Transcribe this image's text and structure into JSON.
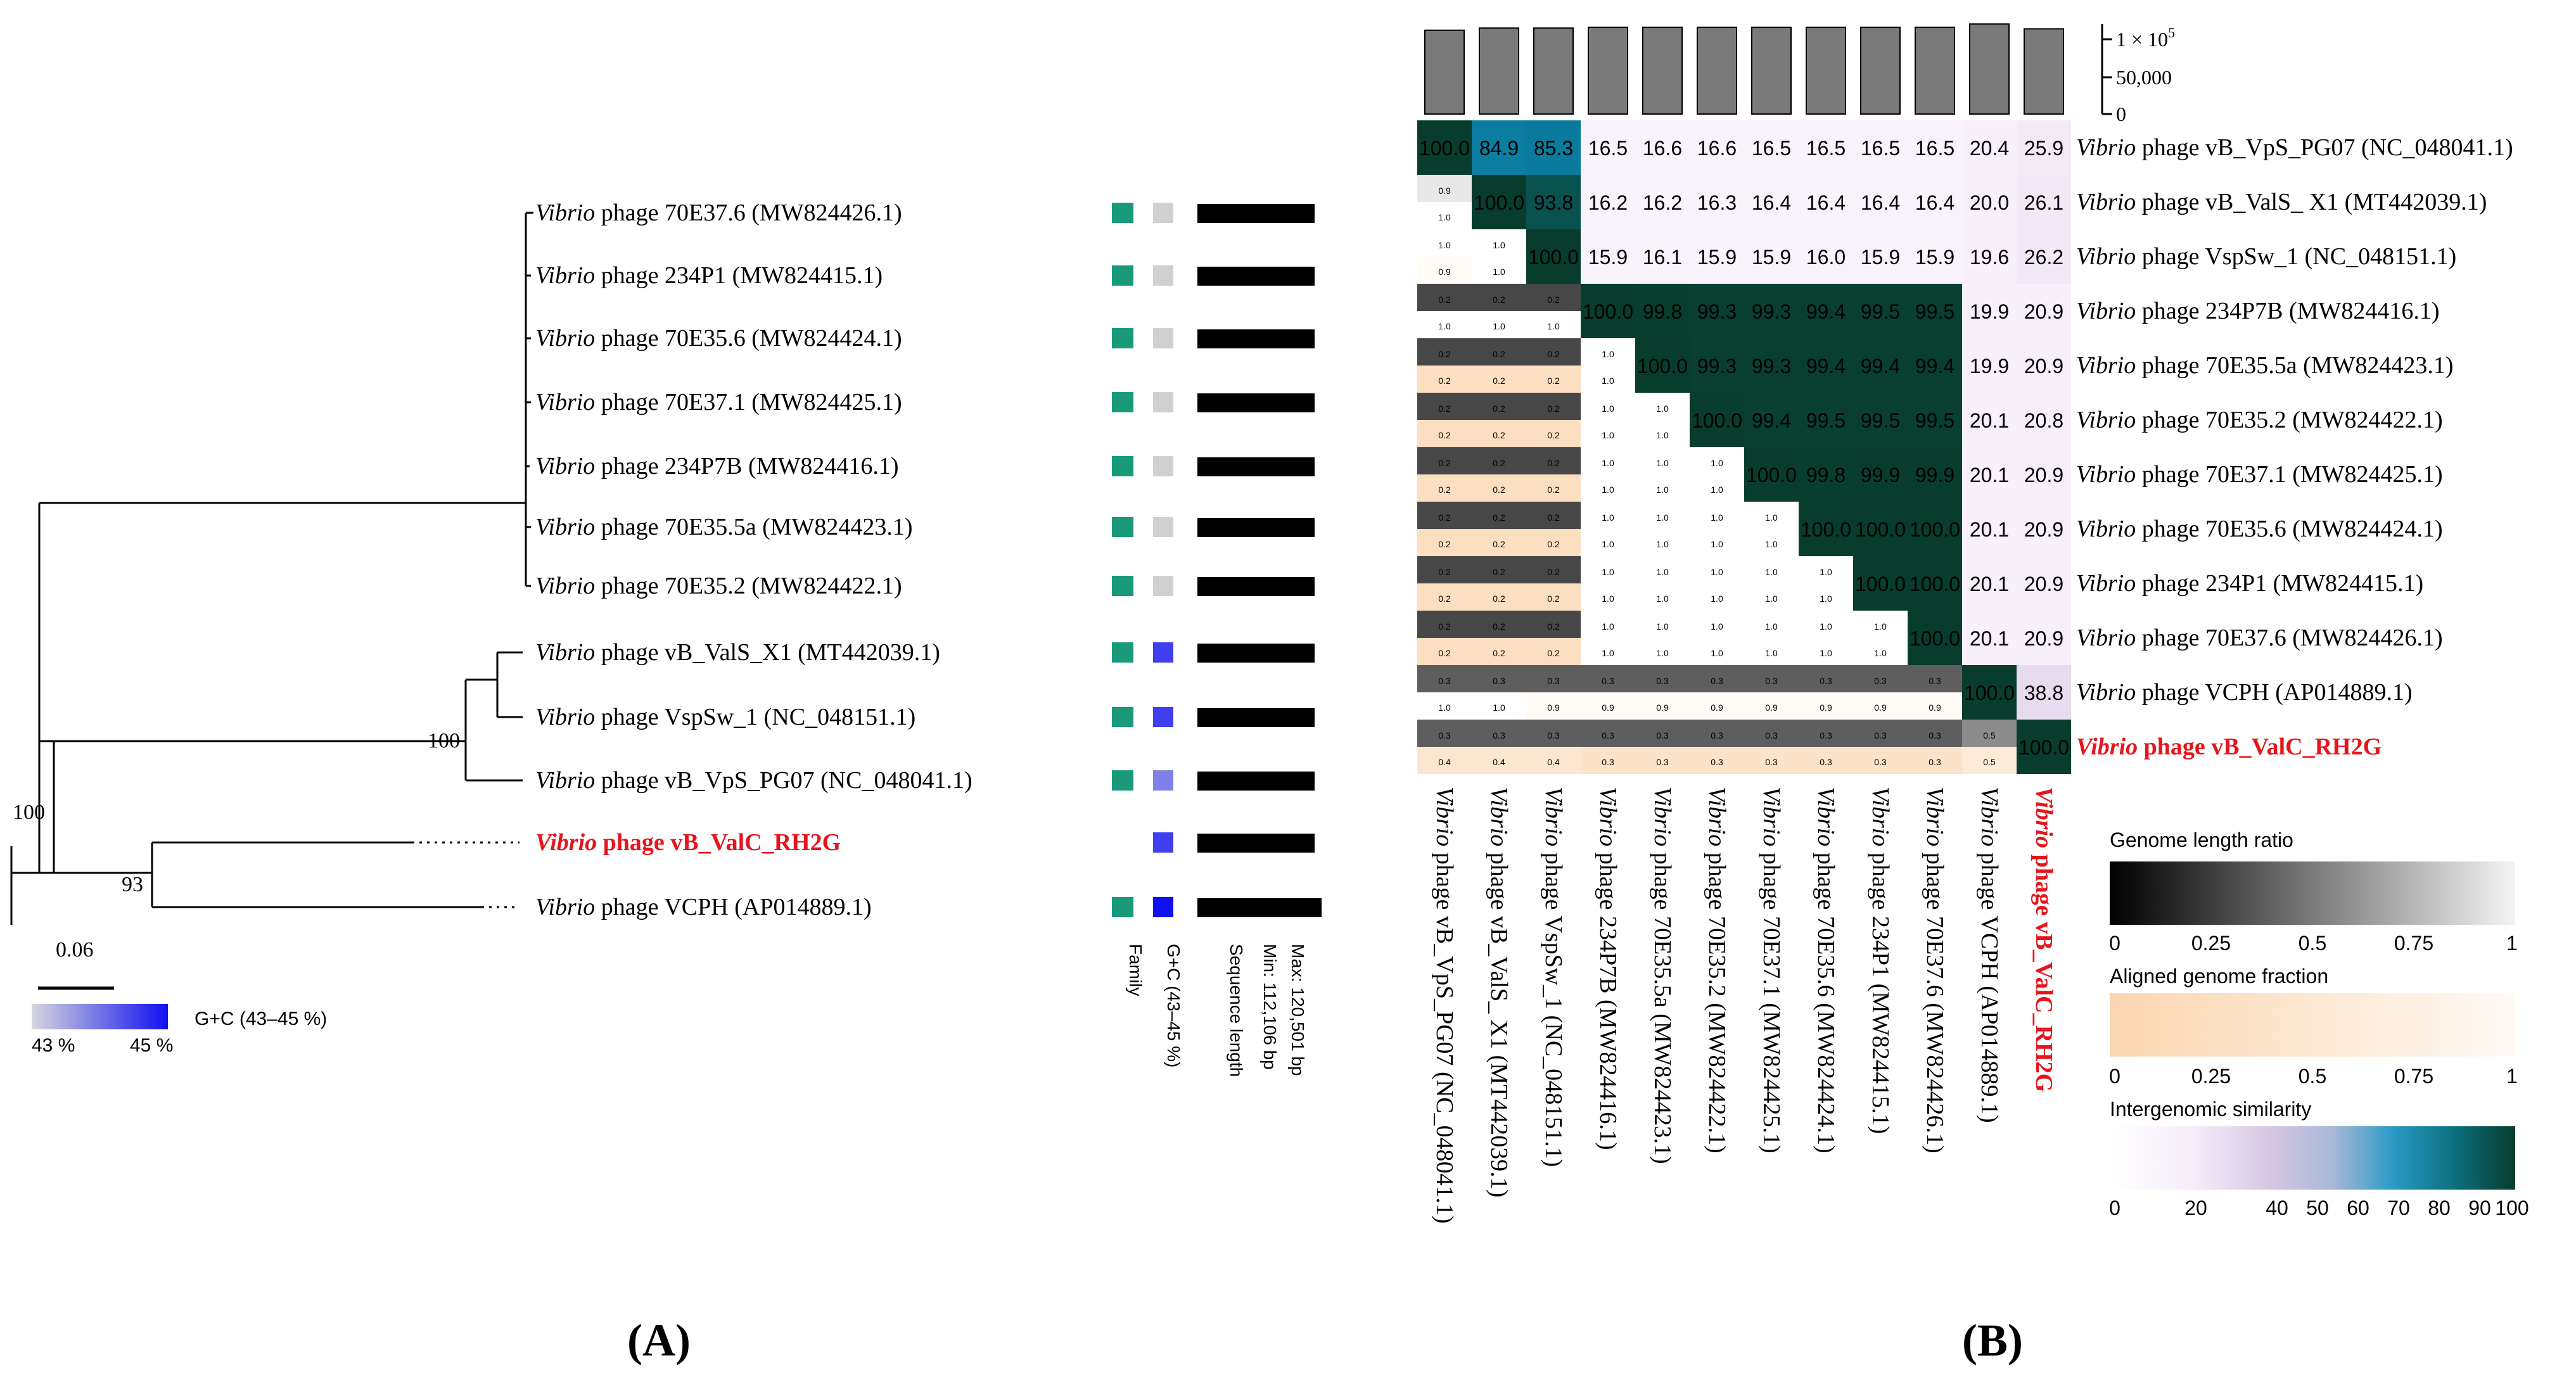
{
  "panel_a": {
    "label": "A",
    "tips": [
      {
        "genus": "Vibrio",
        "rest": " phage 70E37.6  (MW824426.1)",
        "highlight": false,
        "family": true,
        "gc": "#d0d0d0"
      },
      {
        "genus": "Vibrio",
        "rest": " phage 234P1  (MW824415.1)",
        "highlight": false,
        "family": true,
        "gc": "#d0d0d0"
      },
      {
        "genus": "Vibrio",
        "rest": " phage 70E35.6 (MW824424.1)",
        "highlight": false,
        "family": true,
        "gc": "#d0d0d0"
      },
      {
        "genus": "Vibrio",
        "rest": " phage 70E37.1 (MW824425.1)",
        "highlight": false,
        "family": true,
        "gc": "#d0d0d0"
      },
      {
        "genus": "Vibrio",
        "rest": " phage 234P7B  (MW824416.1)",
        "highlight": false,
        "family": true,
        "gc": "#d0d0d0"
      },
      {
        "genus": "Vibrio",
        "rest": " phage 70E35.5a (MW824423.1)",
        "highlight": false,
        "family": true,
        "gc": "#d0d0d0"
      },
      {
        "genus": "Vibrio",
        "rest": " phage 70E35.2 (MW824422.1)",
        "highlight": false,
        "family": true,
        "gc": "#d0d0d0"
      },
      {
        "genus": "Vibrio",
        "rest": " phage vB_ValS_X1 (MT442039.1)",
        "highlight": false,
        "family": true,
        "gc": "#3f3ff0"
      },
      {
        "genus": "Vibrio",
        "rest": " phage VspSw_1 (NC_048151.1)",
        "highlight": false,
        "family": true,
        "gc": "#3f3ff0"
      },
      {
        "genus": "Vibrio",
        "rest": " phage vB_VpS_PG07 (NC_048041.1)",
        "highlight": false,
        "family": true,
        "gc": "#8080e8"
      },
      {
        "genus": "Vibrio",
        "rest": " phage vB_ValC_RH2G",
        "highlight": true,
        "family": false,
        "gc": "#3f3ff0"
      },
      {
        "genus": "Vibrio",
        "rest": " phage VCPH (AP014889.1)",
        "highlight": false,
        "family": true,
        "gc": "#1010f0"
      }
    ],
    "bootstrap": [
      "100",
      "100",
      "93"
    ],
    "scale_label": "0.06",
    "gc_legend": {
      "title": "G+C (43–45 %)",
      "min": "43 %",
      "max": "45 %"
    },
    "column_labels": {
      "family": "Family",
      "gc": "G+C (43–45 %)",
      "length_title": "Sequence length",
      "length_min": "Min: 112,106 bp",
      "length_max": "Max: 120,501 bp"
    },
    "colors": {
      "family": "#1a9a7a",
      "highlight": "#e8141c"
    }
  },
  "panel_b": {
    "label": "B",
    "rows": [
      {
        "genus": "Vibrio",
        "rest": " phage vB_VpS_PG07 (NC_048041.1)",
        "hl": false
      },
      {
        "genus": "Vibrio",
        "rest": " phage vB_ValS_ X1 (MT442039.1)",
        "hl": false
      },
      {
        "genus": "Vibrio",
        "rest": " phage VspSw_1 (NC_048151.1)",
        "hl": false
      },
      {
        "genus": "Vibrio",
        "rest": " phage 234P7B (MW824416.1)",
        "hl": false
      },
      {
        "genus": "Vibrio",
        "rest": " phage 70E35.5a (MW824423.1)",
        "hl": false
      },
      {
        "genus": "Vibrio",
        "rest": " phage 70E35.2 (MW824422.1)",
        "hl": false
      },
      {
        "genus": "Vibrio",
        "rest": " phage 70E37.1 (MW824425.1)",
        "hl": false
      },
      {
        "genus": "Vibrio",
        "rest": " phage 70E35.6 (MW824424.1)",
        "hl": false
      },
      {
        "genus": "Vibrio",
        "rest": " phage 234P1 (MW824415.1)",
        "hl": false
      },
      {
        "genus": "Vibrio",
        "rest": " phage 70E37.6 (MW824426.1)",
        "hl": false
      },
      {
        "genus": "Vibrio",
        "rest": " phage VCPH (AP014889.1)",
        "hl": false
      },
      {
        "genus": "Vibrio",
        "rest": " phage vB_ValC_RH2G",
        "hl": true
      }
    ],
    "cols": [
      {
        "genus": "Vibrio",
        "rest": " phage vB_VpS_PG07 (NC_048041.1)",
        "hl": false
      },
      {
        "genus": "Vibrio",
        "rest": " phage vB_ValS_ X1 (MT442039.1)",
        "hl": false
      },
      {
        "genus": "Vibrio",
        "rest": " phage VspSw_1 (NC_048151.1)",
        "hl": false
      },
      {
        "genus": "Vibrio",
        "rest": " phage 234P7B (MW824416.1)",
        "hl": false
      },
      {
        "genus": "Vibrio",
        "rest": " phage 70E35.5a (MW824423.1)",
        "hl": false
      },
      {
        "genus": "Vibrio",
        "rest": " phage 70E35.2 (MW824422.1)",
        "hl": false
      },
      {
        "genus": "Vibrio",
        "rest": " phage 70E37.1 (MW824425.1)",
        "hl": false
      },
      {
        "genus": "Vibrio",
        "rest": " phage 70E35.6 (MW824424.1)",
        "hl": false
      },
      {
        "genus": "Vibrio",
        "rest": " phage 234P1 (MW824415.1)",
        "hl": false
      },
      {
        "genus": "Vibrio",
        "rest": " phage 70E37.6 (MW824426.1)",
        "hl": false
      },
      {
        "genus": "Vibrio",
        "rest": " phage VCPH (AP014889.1)",
        "hl": false
      },
      {
        "genus": "Vibrio",
        "rest": " phage vB_ValC_RH2G",
        "hl": true
      }
    ],
    "similarity": [
      [
        100.0,
        84.9,
        85.3,
        16.5,
        16.6,
        16.6,
        16.5,
        16.5,
        16.5,
        16.5,
        20.4,
        25.9
      ],
      [
        null,
        100.0,
        93.8,
        16.2,
        16.2,
        16.3,
        16.4,
        16.4,
        16.4,
        16.4,
        20.0,
        26.1
      ],
      [
        null,
        null,
        100.0,
        15.9,
        16.1,
        15.9,
        15.9,
        16.0,
        15.9,
        15.9,
        19.6,
        26.2
      ],
      [
        null,
        null,
        null,
        100.0,
        99.8,
        99.3,
        99.3,
        99.4,
        99.5,
        99.5,
        19.9,
        20.9
      ],
      [
        null,
        null,
        null,
        null,
        100.0,
        99.3,
        99.3,
        99.4,
        99.4,
        99.4,
        19.9,
        20.9
      ],
      [
        null,
        null,
        null,
        null,
        null,
        100.0,
        99.4,
        99.5,
        99.5,
        99.5,
        20.1,
        20.8
      ],
      [
        null,
        null,
        null,
        null,
        null,
        null,
        100.0,
        99.8,
        99.9,
        99.9,
        20.1,
        20.9
      ],
      [
        null,
        null,
        null,
        null,
        null,
        null,
        null,
        100.0,
        100.0,
        100.0,
        20.1,
        20.9
      ],
      [
        null,
        null,
        null,
        null,
        null,
        null,
        null,
        null,
        100.0,
        100.0,
        20.1,
        20.9
      ],
      [
        null,
        null,
        null,
        null,
        null,
        null,
        null,
        null,
        null,
        100.0,
        20.1,
        20.9
      ],
      [
        null,
        null,
        null,
        null,
        null,
        null,
        null,
        null,
        null,
        null,
        100.0,
        38.8
      ],
      [
        null,
        null,
        null,
        null,
        null,
        null,
        null,
        null,
        null,
        null,
        null,
        100.0
      ]
    ],
    "lower_top": [
      [],
      [
        "0.9"
      ],
      [
        "1.0",
        "1.0"
      ],
      [
        "0.2",
        "0.2",
        "0.2"
      ],
      [
        "0.2",
        "0.2",
        "0.2",
        "1.0"
      ],
      [
        "0.2",
        "0.2",
        "0.2",
        "1.0",
        "1.0"
      ],
      [
        "0.2",
        "0.2",
        "0.2",
        "1.0",
        "1.0",
        "1.0"
      ],
      [
        "0.2",
        "0.2",
        "0.2",
        "1.0",
        "1.0",
        "1.0",
        "1.0"
      ],
      [
        "0.2",
        "0.2",
        "0.2",
        "1.0",
        "1.0",
        "1.0",
        "1.0",
        "1.0"
      ],
      [
        "0.2",
        "0.2",
        "0.2",
        "1.0",
        "1.0",
        "1.0",
        "1.0",
        "1.0",
        "1.0"
      ],
      [
        "0.3",
        "0.3",
        "0.3",
        "0.3",
        "0.3",
        "0.3",
        "0.3",
        "0.3",
        "0.3",
        "0.3"
      ],
      [
        "0.3",
        "0.3",
        "0.3",
        "0.3",
        "0.3",
        "0.3",
        "0.3",
        "0.3",
        "0.3",
        "0.3",
        "0.5"
      ]
    ],
    "lower_bottom": [
      [],
      [
        "1.0"
      ],
      [
        "0.9",
        "1.0"
      ],
      [
        "1.0",
        "1.0",
        "1.0"
      ],
      [
        "0.2",
        "0.2",
        "0.2",
        "1.0"
      ],
      [
        "0.2",
        "0.2",
        "0.2",
        "1.0",
        "1.0"
      ],
      [
        "0.2",
        "0.2",
        "0.2",
        "1.0",
        "1.0",
        "1.0"
      ],
      [
        "0.2",
        "0.2",
        "0.2",
        "1.0",
        "1.0",
        "1.0",
        "1.0"
      ],
      [
        "0.2",
        "0.2",
        "0.2",
        "1.0",
        "1.0",
        "1.0",
        "1.0",
        "1.0"
      ],
      [
        "0.2",
        "0.2",
        "0.2",
        "1.0",
        "1.0",
        "1.0",
        "1.0",
        "1.0",
        "1.0"
      ],
      [
        "1.0",
        "1.0",
        "0.9",
        "0.9",
        "0.9",
        "0.9",
        "0.9",
        "0.9",
        "0.9",
        "0.9"
      ],
      [
        "0.4",
        "0.4",
        "0.4",
        "0.3",
        "0.3",
        "0.3",
        "0.3",
        "0.3",
        "0.3",
        "0.3",
        "0.5"
      ]
    ],
    "genome_lengths": [
      112106,
      115000,
      115000,
      116000,
      116000,
      116000,
      116000,
      116000,
      116000,
      116000,
      120501,
      114000
    ],
    "bar_axis_labels": [
      "1 × 10",
      "5",
      "50,000",
      "0"
    ],
    "legends": {
      "length_ratio": {
        "title": "Genome length ratio",
        "ticks": [
          "0",
          "0.25",
          "0.5",
          "0.75",
          "1"
        ]
      },
      "aligned_fraction": {
        "title": "Aligned genome fraction",
        "ticks": [
          "0",
          "0.25",
          "0.5",
          "0.75",
          "1"
        ]
      },
      "similarity": {
        "title": "Intergenomic similarity",
        "ticks": [
          "0",
          "20",
          "40",
          "50",
          "60",
          "70",
          "80",
          "90",
          "100"
        ]
      }
    }
  }
}
